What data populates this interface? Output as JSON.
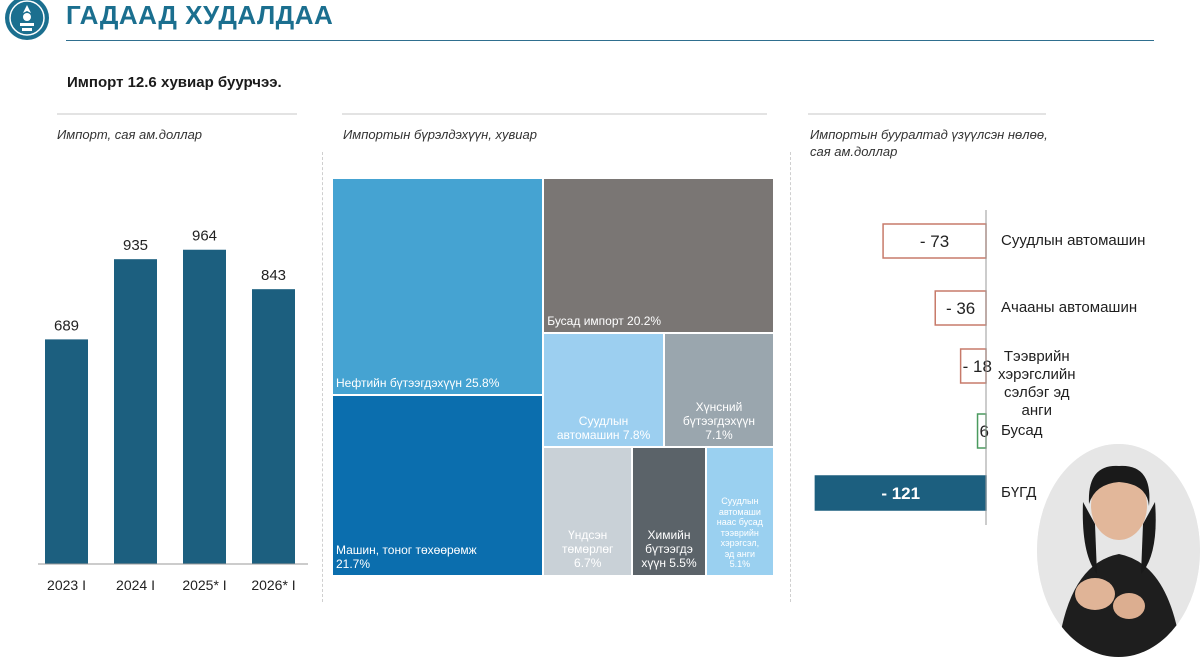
{
  "header": {
    "title": "ГАДААД ХУДАЛДАА",
    "subtitle": "Импорт 12.6 хувиар буурчээ."
  },
  "colors": {
    "title": "#1b6f8f",
    "bar": "#1c5f7f",
    "impact_negative_border": "#c77a6a",
    "impact_positive_border": "#4a9a5e",
    "impact_total": "#1c5f7f"
  },
  "chart_data": [
    {
      "type": "bar",
      "ylabel": "Импорт,  сая ам.доллар",
      "categories": [
        "2023 I",
        "2024 I",
        "2025* I",
        "2026* I"
      ],
      "values": [
        689,
        935,
        964,
        843
      ],
      "data_labels": [
        "689",
        "935",
        "964",
        "843"
      ],
      "ylim": [
        0,
        1000
      ]
    },
    {
      "type": "treemap",
      "title": "Импортын бүрэлдэхүүн, хувиар",
      "items": [
        {
          "label": "Нефтийн бүтээгдэхүүн 25.8%",
          "value": 25.8,
          "color": "#45a3d2"
        },
        {
          "label": "Машин, тоног төхөөрөмж\n21.7%",
          "value": 21.7,
          "color": "#0b6eae"
        },
        {
          "label": "Бусад импорт 20.2%",
          "value": 20.2,
          "color": "#7a7674"
        },
        {
          "label": "Суудлын\nавтомашин 7.8%",
          "value": 7.8,
          "color": "#9ccff0"
        },
        {
          "label": "Хүнсний\nбүтээгдэхүүн\n7.1%",
          "value": 7.1,
          "color": "#9aa6ae"
        },
        {
          "label": "Үндсэн\nтөмөрлөг\n6.7%",
          "value": 6.7,
          "color": "#c9d1d7"
        },
        {
          "label": "Химийн\nбүтээгдэ\nхүүн 5.5%",
          "value": 5.5,
          "color": "#5b6369"
        },
        {
          "label": "Суудлын\nавтомаши\nнаас бусад\nтээврийн\nхэрэгсэл,\nэд анги\n5.1%",
          "value": 5.1,
          "color": "#9ad0f0"
        }
      ]
    },
    {
      "type": "bar",
      "orientation": "horizontal",
      "title": "Импортын бууралтад үзүүлсэн нөлөө,\nсая ам.доллар",
      "categories": [
        "Суудлын автомашин",
        "Ачааны автомашин",
        "Тээврийн хэрэгслийн\nсэлбэг эд анги",
        "Бусад",
        "БҮГД"
      ],
      "values": [
        -73,
        -36,
        -18,
        6,
        -121
      ],
      "data_labels": [
        "- 73",
        "- 36",
        "- 18",
        "6",
        "- 121"
      ]
    }
  ]
}
